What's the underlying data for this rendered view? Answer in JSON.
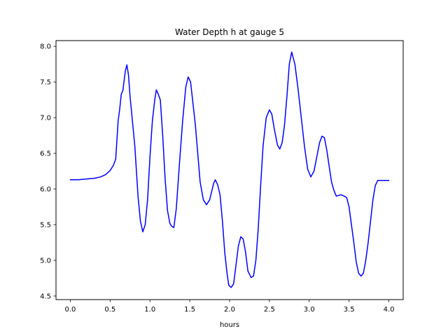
{
  "chart_data": {
    "type": "line",
    "title": "Water Depth h at gauge 5",
    "xlabel": "hours",
    "ylabel": "",
    "xlim": [
      -0.18,
      4.18
    ],
    "ylim": [
      4.45,
      8.08
    ],
    "xticks": [
      0.0,
      0.5,
      1.0,
      1.5,
      2.0,
      2.5,
      3.0,
      3.5,
      4.0
    ],
    "xtick_labels": [
      "0.0",
      "0.5",
      "1.0",
      "1.5",
      "2.0",
      "2.5",
      "3.0",
      "3.5",
      "4.0"
    ],
    "yticks": [
      4.5,
      5.0,
      5.5,
      6.0,
      6.5,
      7.0,
      7.5,
      8.0
    ],
    "ytick_labels": [
      "4.5",
      "5.0",
      "5.5",
      "6.0",
      "6.5",
      "7.0",
      "7.5",
      "8.0"
    ],
    "grid": false,
    "series": [
      {
        "color": "#0000ff",
        "x": [
          0.0,
          0.1,
          0.2,
          0.3,
          0.38,
          0.44,
          0.5,
          0.54,
          0.57,
          0.6,
          0.62,
          0.64,
          0.66,
          0.69,
          0.71,
          0.73,
          0.75,
          0.78,
          0.81,
          0.85,
          0.88,
          0.91,
          0.94,
          0.97,
          1.0,
          1.03,
          1.06,
          1.08,
          1.1,
          1.13,
          1.16,
          1.19,
          1.22,
          1.25,
          1.27,
          1.3,
          1.33,
          1.37,
          1.41,
          1.45,
          1.48,
          1.51,
          1.54,
          1.57,
          1.6,
          1.63,
          1.67,
          1.71,
          1.75,
          1.8,
          1.82,
          1.85,
          1.88,
          1.91,
          1.94,
          1.97,
          1.99,
          2.02,
          2.05,
          2.08,
          2.11,
          2.14,
          2.17,
          2.2,
          2.23,
          2.27,
          2.3,
          2.33,
          2.36,
          2.39,
          2.42,
          2.46,
          2.5,
          2.53,
          2.56,
          2.6,
          2.63,
          2.66,
          2.69,
          2.72,
          2.75,
          2.78,
          2.82,
          2.86,
          2.9,
          2.94,
          2.98,
          3.02,
          3.06,
          3.1,
          3.13,
          3.16,
          3.19,
          3.22,
          3.25,
          3.28,
          3.31,
          3.34,
          3.37,
          3.4,
          3.44,
          3.47,
          3.5,
          3.53,
          3.56,
          3.59,
          3.62,
          3.65,
          3.68,
          3.71,
          3.74,
          3.77,
          3.8,
          3.83,
          3.86,
          3.89,
          3.92,
          3.96,
          4.0
        ],
        "y": [
          6.13,
          6.13,
          6.14,
          6.15,
          6.17,
          6.2,
          6.26,
          6.33,
          6.42,
          6.95,
          7.12,
          7.33,
          7.38,
          7.65,
          7.74,
          7.6,
          7.3,
          6.95,
          6.6,
          5.9,
          5.55,
          5.4,
          5.5,
          5.85,
          6.45,
          6.95,
          7.25,
          7.39,
          7.34,
          7.25,
          6.75,
          6.15,
          5.7,
          5.52,
          5.48,
          5.46,
          5.72,
          6.35,
          6.95,
          7.43,
          7.57,
          7.5,
          7.2,
          6.9,
          6.5,
          6.1,
          5.85,
          5.78,
          5.85,
          6.08,
          6.13,
          6.06,
          5.92,
          5.55,
          5.1,
          4.8,
          4.65,
          4.62,
          4.67,
          4.93,
          5.2,
          5.33,
          5.3,
          5.12,
          4.85,
          4.76,
          4.78,
          5.0,
          5.45,
          6.05,
          6.6,
          7.0,
          7.11,
          7.05,
          6.85,
          6.62,
          6.56,
          6.65,
          6.9,
          7.3,
          7.75,
          7.92,
          7.75,
          7.4,
          7.0,
          6.6,
          6.28,
          6.17,
          6.25,
          6.48,
          6.65,
          6.74,
          6.72,
          6.55,
          6.32,
          6.1,
          5.98,
          5.9,
          5.91,
          5.92,
          5.9,
          5.88,
          5.75,
          5.5,
          5.25,
          4.98,
          4.82,
          4.78,
          4.82,
          5.0,
          5.25,
          5.55,
          5.85,
          6.05,
          6.12,
          6.12,
          6.12,
          6.12,
          6.12
        ]
      }
    ]
  }
}
